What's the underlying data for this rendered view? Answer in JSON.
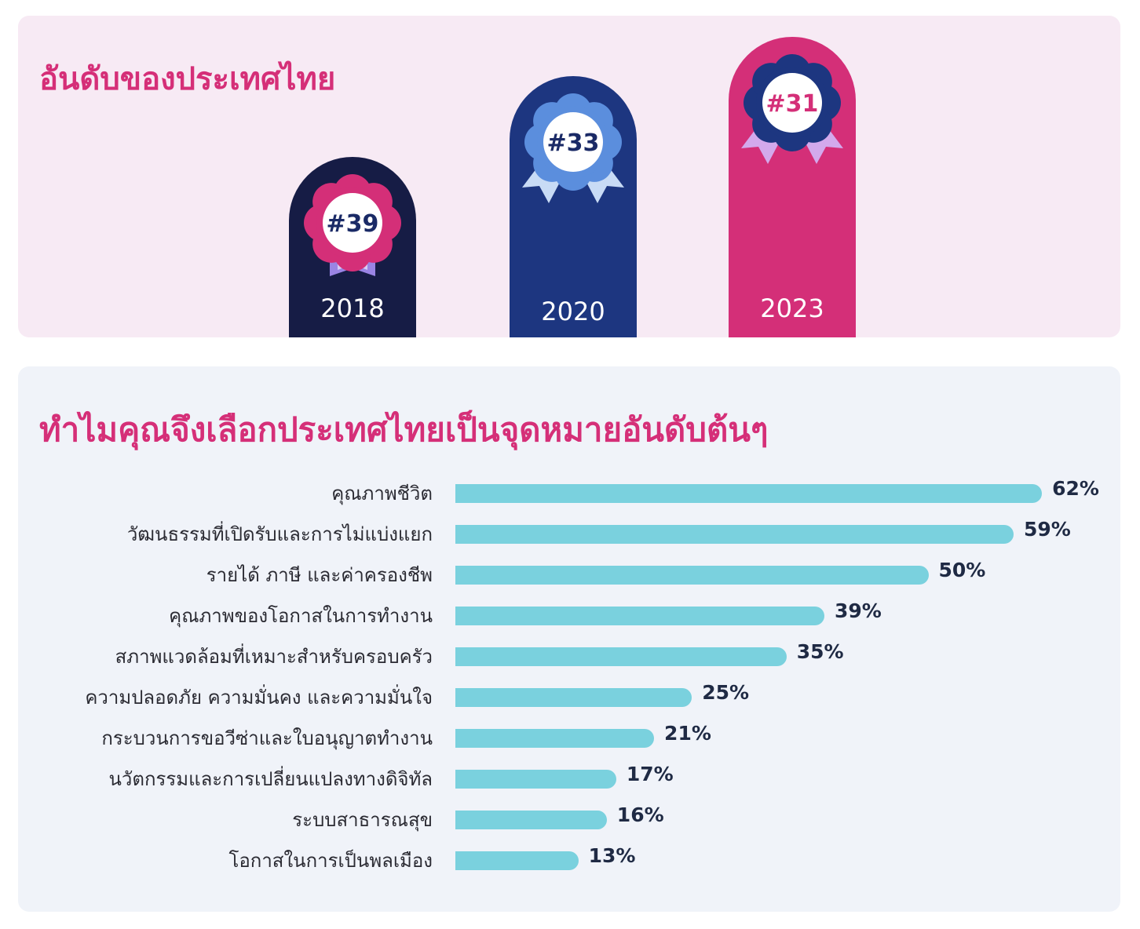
{
  "ranking": {
    "title": "อันดับของประเทศไทย",
    "items": [
      {
        "rank": "#39",
        "year": "2018",
        "pillar_color": "#161c45",
        "flower_color": "#d42f78",
        "ribbon_color": "#9a84e4",
        "ribbon_inner": "#d7ccf6",
        "text_color": "#1a2a66"
      },
      {
        "rank": "#33",
        "year": "2020",
        "pillar_color": "#1d3680",
        "flower_color": "#5b8edd",
        "ribbon_color": "#c8dbf5",
        "ribbon_inner": "#c8dbf5",
        "text_color": "#1a2a66"
      },
      {
        "rank": "#31",
        "year": "2023",
        "pillar_color": "#d42f78",
        "flower_color": "#1d3680",
        "ribbon_color": "#d3a9ec",
        "ribbon_inner": "#d3a9ec",
        "text_color": "#d42f78"
      }
    ]
  },
  "reasons": {
    "title": "ทำไมคุณจึงเลือกประเทศไทยเป็นจุดหมายอันดับต้นๆ"
  },
  "chart_data": {
    "type": "bar",
    "orientation": "horizontal",
    "categories": [
      "คุณภาพชีวิต",
      "วัฒนธรรมที่เปิดรับและการไม่แบ่งแยก",
      "รายได้ ภาษี และค่าครองชีพ",
      "คุณภาพของโอกาสในการทำงาน",
      "สภาพแวดล้อมที่เหมาะสำหรับครอบครัว",
      "ความปลอดภัย ความมั่นคง และความมั่นใจ",
      "กระบวนการขอวีซ่าและใบอนุญาตทำงาน",
      "นวัตกรรมและการเปลี่ยนแปลงทางดิจิทัล",
      "ระบบสาธารณสุข",
      "โอกาสในการเป็นพลเมือง"
    ],
    "values": [
      62,
      59,
      50,
      39,
      35,
      25,
      21,
      17,
      16,
      13
    ],
    "value_labels": [
      "62%",
      "59%",
      "50%",
      "39%",
      "35%",
      "25%",
      "21%",
      "17%",
      "16%",
      "13%"
    ],
    "xlim": [
      0,
      100
    ],
    "grid": false,
    "bar_color": "#7ad1de"
  }
}
